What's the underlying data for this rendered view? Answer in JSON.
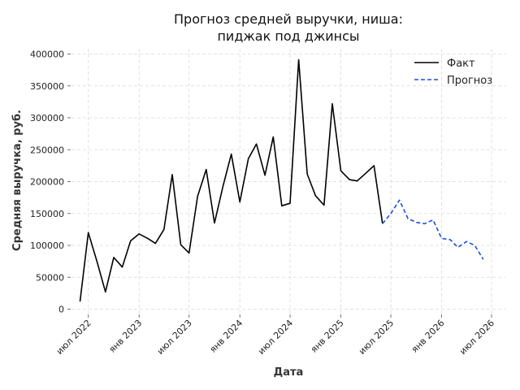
{
  "chart_data": {
    "type": "line",
    "title_lines": [
      "Прогноз средней выручки, ниша:",
      "пиджак под джинсы"
    ],
    "xlabel": "Дата",
    "ylabel": "Средняя выручка, руб.",
    "ylim": [
      0,
      410000
    ],
    "yticks": [
      0,
      50000,
      100000,
      150000,
      200000,
      250000,
      300000,
      350000,
      400000
    ],
    "xlim": [
      "2022-05-01",
      "2026-08-20"
    ],
    "xticks": [
      {
        "date": "2022-07-01",
        "label": "июл 2022"
      },
      {
        "date": "2023-01-01",
        "label": "янв 2023"
      },
      {
        "date": "2023-07-01",
        "label": "июл 2023"
      },
      {
        "date": "2024-01-01",
        "label": "янв 2024"
      },
      {
        "date": "2024-07-01",
        "label": "июл 2024"
      },
      {
        "date": "2025-01-01",
        "label": "янв 2025"
      },
      {
        "date": "2025-07-01",
        "label": "июл 2025"
      },
      {
        "date": "2026-01-01",
        "label": "янв 2026"
      },
      {
        "date": "2026-07-01",
        "label": "июл 2026"
      }
    ],
    "grid": true,
    "legend_position": "top-right",
    "series": [
      {
        "name": "Факт",
        "color": "#000000",
        "style": "solid",
        "points": [
          [
            "2022-06-01",
            12000
          ],
          [
            "2022-07-01",
            120000
          ],
          [
            "2022-08-01",
            75000
          ],
          [
            "2022-09-01",
            27000
          ],
          [
            "2022-10-01",
            81000
          ],
          [
            "2022-11-01",
            66000
          ],
          [
            "2022-12-01",
            107000
          ],
          [
            "2023-01-01",
            118000
          ],
          [
            "2023-02-01",
            111000
          ],
          [
            "2023-03-01",
            103000
          ],
          [
            "2023-04-01",
            125000
          ],
          [
            "2023-05-01",
            211000
          ],
          [
            "2023-06-01",
            101000
          ],
          [
            "2023-07-01",
            88000
          ],
          [
            "2023-08-01",
            177000
          ],
          [
            "2023-09-01",
            219000
          ],
          [
            "2023-10-01",
            135000
          ],
          [
            "2023-11-01",
            193000
          ],
          [
            "2023-12-01",
            243000
          ],
          [
            "2024-01-01",
            168000
          ],
          [
            "2024-02-01",
            236000
          ],
          [
            "2024-03-01",
            259000
          ],
          [
            "2024-04-01",
            210000
          ],
          [
            "2024-05-01",
            270000
          ],
          [
            "2024-06-01",
            162000
          ],
          [
            "2024-07-01",
            166000
          ],
          [
            "2024-08-01",
            391000
          ],
          [
            "2024-09-01",
            212000
          ],
          [
            "2024-10-01",
            178000
          ],
          [
            "2024-11-01",
            163000
          ],
          [
            "2024-12-01",
            322000
          ],
          [
            "2025-01-01",
            217000
          ],
          [
            "2025-02-01",
            203000
          ],
          [
            "2025-03-01",
            201000
          ],
          [
            "2025-04-01",
            213000
          ],
          [
            "2025-05-01",
            225000
          ],
          [
            "2025-06-01",
            134000
          ]
        ]
      },
      {
        "name": "Прогноз",
        "color": "#1f4fd1",
        "style": "dashed",
        "points": [
          [
            "2025-06-01",
            134000
          ],
          [
            "2025-07-01",
            150000
          ],
          [
            "2025-08-01",
            171000
          ],
          [
            "2025-09-01",
            142000
          ],
          [
            "2025-10-01",
            136000
          ],
          [
            "2025-11-01",
            134000
          ],
          [
            "2025-12-01",
            140000
          ],
          [
            "2026-01-01",
            111000
          ],
          [
            "2026-02-01",
            109000
          ],
          [
            "2026-03-01",
            97000
          ],
          [
            "2026-04-01",
            106000
          ],
          [
            "2026-05-01",
            100000
          ],
          [
            "2026-06-01",
            78000
          ]
        ]
      }
    ]
  }
}
